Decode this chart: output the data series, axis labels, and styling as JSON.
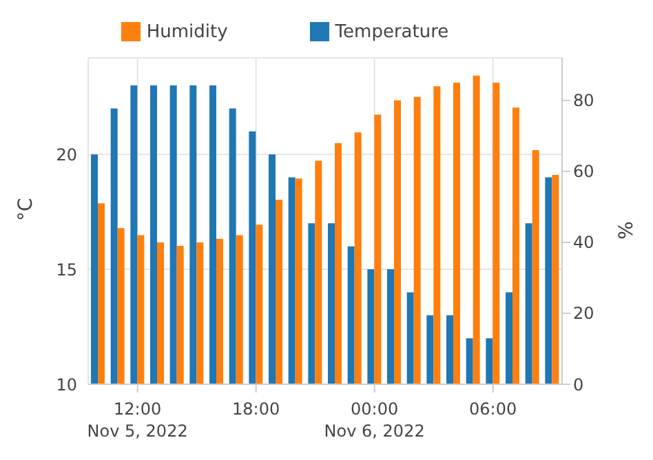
{
  "chart_data": {
    "type": "bar",
    "x": [
      "2022-11-05T10:00",
      "2022-11-05T11:00",
      "2022-11-05T12:00",
      "2022-11-05T13:00",
      "2022-11-05T14:00",
      "2022-11-05T15:00",
      "2022-11-05T16:00",
      "2022-11-05T17:00",
      "2022-11-05T18:00",
      "2022-11-05T19:00",
      "2022-11-05T20:00",
      "2022-11-05T21:00",
      "2022-11-05T22:00",
      "2022-11-05T23:00",
      "2022-11-06T00:00",
      "2022-11-06T01:00",
      "2022-11-06T02:00",
      "2022-11-06T03:00",
      "2022-11-06T04:00",
      "2022-11-06T05:00",
      "2022-11-06T06:00",
      "2022-11-06T07:00",
      "2022-11-06T08:00",
      "2022-11-06T09:00"
    ],
    "series": [
      {
        "name": "Temperature",
        "color": "#1f77b4",
        "values": [
          20,
          22,
          23,
          23,
          23,
          23,
          23,
          22,
          21,
          20,
          19,
          17,
          17,
          16,
          15,
          15,
          14,
          13,
          13,
          12,
          12,
          14,
          17,
          19
        ]
      },
      {
        "name": "Humidity",
        "color": "#ff7f0e",
        "axis": "y2",
        "values": [
          51,
          44,
          42,
          40,
          39,
          40,
          41,
          42,
          45,
          52,
          58,
          63,
          68,
          71,
          76,
          80,
          81,
          84,
          85,
          87,
          85,
          78,
          66,
          59
        ]
      }
    ],
    "xlim": [
      "2022-11-05T09:30",
      "2022-11-06T09:30"
    ],
    "xticks": [
      {
        "value": "2022-11-05T12:00",
        "label": "12:00\nNov 5, 2022"
      },
      {
        "value": "2022-11-05T18:00",
        "label": "18:00"
      },
      {
        "value": "2022-11-06T00:00",
        "label": "00:00\nNov 6, 2022"
      },
      {
        "value": "2022-11-06T06:00",
        "label": "06:00"
      }
    ],
    "ylim": [
      10,
      24.2
    ],
    "yticks": [
      10,
      15,
      20
    ],
    "y2lim": [
      0,
      92
    ],
    "y2ticks": [
      0,
      20,
      40,
      60,
      80
    ],
    "ylabel": "°C",
    "y2label": "%",
    "grid": true,
    "legend": "top"
  }
}
